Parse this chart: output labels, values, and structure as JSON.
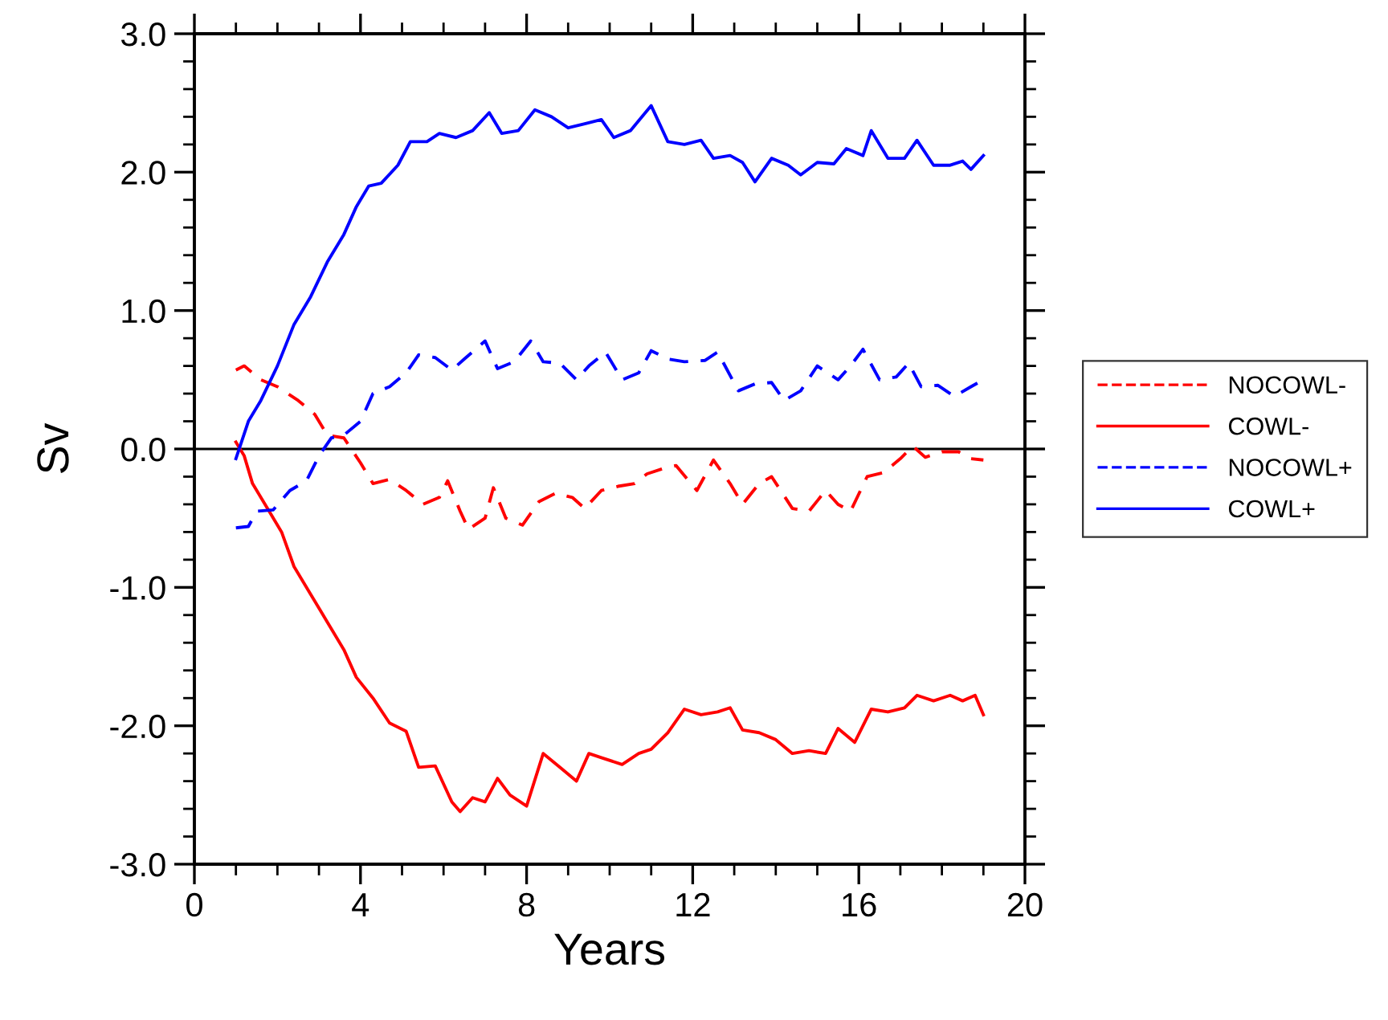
{
  "chart_data": {
    "type": "line",
    "xlabel": "Years",
    "ylabel": "Sv",
    "xlim": [
      0,
      20
    ],
    "xticks": [
      0,
      4,
      8,
      12,
      16,
      20
    ],
    "ylim": [
      -3,
      3
    ],
    "yticks": [
      {
        "value": -3,
        "label": "-3.0"
      },
      {
        "value": -2,
        "label": "-2.0"
      },
      {
        "value": -1,
        "label": "-1.0"
      },
      {
        "value": 0,
        "label": "0.0"
      },
      {
        "value": 1,
        "label": "1.0"
      },
      {
        "value": 2,
        "label": "2.0"
      },
      {
        "value": 3,
        "label": "3.0"
      }
    ],
    "grid": false,
    "legend": "right",
    "marker": "none",
    "ref_lines": [
      {
        "axis": "y",
        "value": 0,
        "color": "#000000"
      }
    ],
    "series": [
      {
        "name": "NOCOWL-",
        "color": "#ff0000",
        "line_style": "dashed",
        "x": [
          1.0,
          1.2,
          1.6,
          2.0,
          2.5,
          2.9,
          3.2,
          3.6,
          4.0,
          4.3,
          4.7,
          5.1,
          5.5,
          5.9,
          6.1,
          6.4,
          6.6,
          7.0,
          7.2,
          7.5,
          7.9,
          8.3,
          8.7,
          9.1,
          9.4,
          9.8,
          10.2,
          10.6,
          10.9,
          11.3,
          11.6,
          12.1,
          12.5,
          12.9,
          13.2,
          13.6,
          13.9,
          14.4,
          14.8,
          15.2,
          15.5,
          15.8,
          16.2,
          16.6,
          17.0,
          17.3,
          17.6,
          18.0,
          18.4,
          18.7,
          19.0
        ],
        "values": [
          0.57,
          0.6,
          0.5,
          0.45,
          0.35,
          0.25,
          0.1,
          0.08,
          -0.1,
          -0.25,
          -0.22,
          -0.3,
          -0.4,
          -0.35,
          -0.23,
          -0.45,
          -0.58,
          -0.5,
          -0.28,
          -0.5,
          -0.55,
          -0.38,
          -0.32,
          -0.35,
          -0.43,
          -0.3,
          -0.27,
          -0.25,
          -0.18,
          -0.14,
          -0.12,
          -0.3,
          -0.08,
          -0.25,
          -0.4,
          -0.25,
          -0.2,
          -0.43,
          -0.45,
          -0.3,
          -0.4,
          -0.45,
          -0.2,
          -0.17,
          -0.07,
          0.02,
          -0.06,
          -0.02,
          -0.02,
          -0.07,
          -0.08
        ]
      },
      {
        "name": "COWL-",
        "color": "#ff0000",
        "line_style": "solid",
        "x": [
          1.0,
          1.2,
          1.4,
          1.8,
          2.1,
          2.4,
          2.8,
          3.2,
          3.6,
          3.9,
          4.3,
          4.7,
          5.1,
          5.4,
          5.8,
          6.2,
          6.4,
          6.7,
          7.0,
          7.3,
          7.6,
          8.0,
          8.4,
          8.8,
          9.2,
          9.5,
          9.8,
          10.3,
          10.7,
          11.0,
          11.4,
          11.8,
          12.2,
          12.6,
          12.9,
          13.2,
          13.6,
          14.0,
          14.4,
          14.8,
          15.2,
          15.5,
          15.9,
          16.3,
          16.7,
          17.1,
          17.4,
          17.8,
          18.2,
          18.5,
          18.8,
          19.0
        ],
        "values": [
          0.05,
          -0.05,
          -0.25,
          -0.45,
          -0.6,
          -0.85,
          -1.05,
          -1.25,
          -1.45,
          -1.65,
          -1.8,
          -1.98,
          -2.04,
          -2.3,
          -2.29,
          -2.55,
          -2.62,
          -2.52,
          -2.55,
          -2.38,
          -2.5,
          -2.58,
          -2.2,
          -2.3,
          -2.4,
          -2.2,
          -2.23,
          -2.28,
          -2.2,
          -2.17,
          -2.05,
          -1.88,
          -1.92,
          -1.9,
          -1.87,
          -2.03,
          -2.05,
          -2.1,
          -2.2,
          -2.18,
          -2.2,
          -2.02,
          -2.12,
          -1.88,
          -1.9,
          -1.87,
          -1.78,
          -1.82,
          -1.78,
          -1.82,
          -1.78,
          -1.92
        ]
      },
      {
        "name": "NOCOWL+",
        "color": "#0000ff",
        "line_style": "dashed",
        "x": [
          1.0,
          1.3,
          1.5,
          1.9,
          2.3,
          2.7,
          3.0,
          3.3,
          3.6,
          4.0,
          4.3,
          4.7,
          5.1,
          5.4,
          5.8,
          6.2,
          6.5,
          7.0,
          7.3,
          7.7,
          8.1,
          8.4,
          8.8,
          9.2,
          9.5,
          9.9,
          10.3,
          10.7,
          11.0,
          11.4,
          11.8,
          12.3,
          12.6,
          13.1,
          13.5,
          13.9,
          14.2,
          14.6,
          15.0,
          15.5,
          15.8,
          16.1,
          16.5,
          16.9,
          17.2,
          17.5,
          17.9,
          18.3,
          18.7,
          19.0
        ],
        "values": [
          -0.57,
          -0.56,
          -0.45,
          -0.44,
          -0.3,
          -0.23,
          -0.05,
          0.08,
          0.1,
          0.2,
          0.4,
          0.45,
          0.55,
          0.68,
          0.66,
          0.57,
          0.65,
          0.78,
          0.58,
          0.63,
          0.78,
          0.63,
          0.62,
          0.5,
          0.6,
          0.7,
          0.5,
          0.55,
          0.71,
          0.65,
          0.63,
          0.64,
          0.7,
          0.42,
          0.47,
          0.48,
          0.35,
          0.42,
          0.6,
          0.5,
          0.6,
          0.72,
          0.5,
          0.52,
          0.62,
          0.45,
          0.46,
          0.38,
          0.45,
          0.5
        ]
      },
      {
        "name": "COWL+",
        "color": "#0000ff",
        "line_style": "solid",
        "x": [
          1.0,
          1.3,
          1.6,
          2.0,
          2.4,
          2.8,
          3.2,
          3.6,
          3.9,
          4.2,
          4.5,
          4.9,
          5.2,
          5.6,
          5.9,
          6.3,
          6.7,
          7.1,
          7.4,
          7.8,
          8.2,
          8.6,
          9.0,
          9.4,
          9.8,
          10.1,
          10.5,
          11.0,
          11.4,
          11.8,
          12.2,
          12.5,
          12.9,
          13.2,
          13.5,
          13.9,
          14.3,
          14.6,
          15.0,
          15.4,
          15.7,
          16.1,
          16.3,
          16.7,
          17.1,
          17.4,
          17.8,
          18.2,
          18.5,
          18.7,
          19.0
        ],
        "values": [
          -0.07,
          0.2,
          0.35,
          0.6,
          0.9,
          1.1,
          1.35,
          1.55,
          1.75,
          1.9,
          1.92,
          2.05,
          2.22,
          2.22,
          2.28,
          2.25,
          2.3,
          2.43,
          2.28,
          2.3,
          2.45,
          2.4,
          2.32,
          2.35,
          2.38,
          2.25,
          2.3,
          2.48,
          2.22,
          2.2,
          2.23,
          2.1,
          2.12,
          2.07,
          1.93,
          2.1,
          2.05,
          1.98,
          2.07,
          2.06,
          2.17,
          2.12,
          2.3,
          2.1,
          2.1,
          2.23,
          2.05,
          2.05,
          2.08,
          2.02,
          2.12
        ]
      }
    ]
  }
}
